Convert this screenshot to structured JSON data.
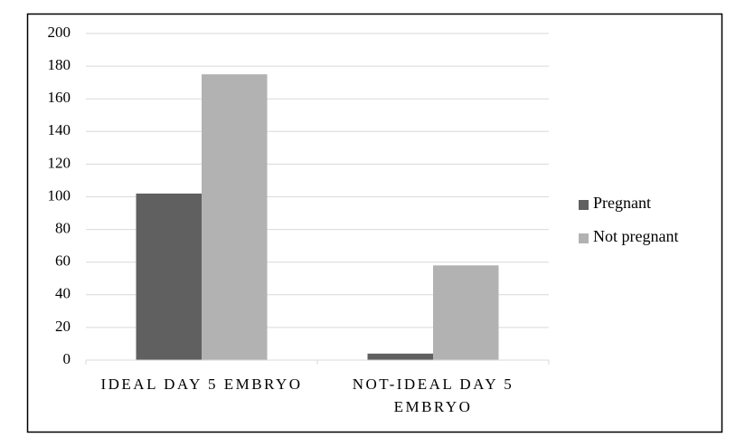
{
  "chart_data": {
    "type": "bar",
    "categories": [
      "IDEAL DAY 5 EMBRYO",
      "NOT-IDEAL DAY 5 EMBRYO"
    ],
    "series": [
      {
        "name": "Pregnant",
        "color": "#606060",
        "values": [
          102,
          4
        ]
      },
      {
        "name": "Not pregnant",
        "color": "#b2b2b2",
        "values": [
          175,
          58
        ]
      }
    ],
    "ylim": [
      0,
      200
    ],
    "yticks": [
      0,
      20,
      40,
      60,
      80,
      100,
      120,
      140,
      160,
      180,
      200
    ],
    "grid": true,
    "legend": "right"
  }
}
